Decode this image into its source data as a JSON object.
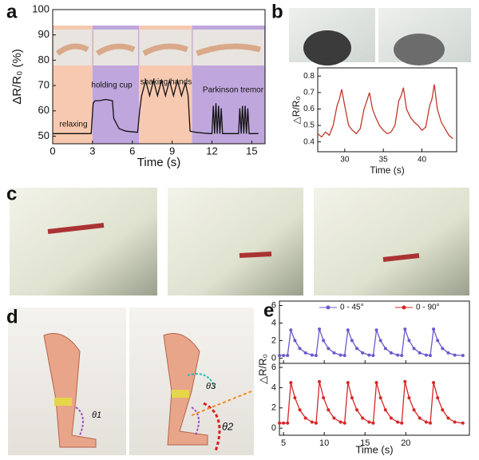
{
  "figure": {
    "panel_labels": [
      "a",
      "b",
      "c",
      "d",
      "e"
    ],
    "theta_labels": [
      "θ1",
      "θ2",
      "θ3"
    ]
  },
  "chart_data": [
    {
      "type": "line",
      "xlabel": "Time (s)",
      "ylabel": "ΔR/R₀ (%)",
      "xlim": [
        0,
        16
      ],
      "xticks": [
        0,
        3,
        6,
        9,
        12,
        15
      ],
      "ylim": [
        47,
        100
      ],
      "yticks": [
        50,
        60,
        70,
        80,
        90,
        100
      ],
      "bands": [
        [
          0,
          3
        ],
        [
          3,
          6.5
        ],
        [
          6.5,
          10.5
        ],
        [
          10.5,
          16
        ]
      ],
      "band_colors": [
        "#f6c9b0",
        "#bfa6dc",
        "#f6c9b0",
        "#bfa6dc"
      ],
      "annotations": [
        "relaxing",
        "holding cup",
        "shaking hands",
        "Parkinson tremor"
      ],
      "x": [
        0,
        2.9,
        3.05,
        3.2,
        3.5,
        4,
        4.5,
        4.6,
        5,
        5.5,
        6.4,
        6.55,
        6.7,
        7,
        7.3,
        7.6,
        7.9,
        8.2,
        8.5,
        8.8,
        9.1,
        9.4,
        9.7,
        10,
        10.2,
        10.35,
        10.8,
        11.8,
        12,
        12.1,
        12.2,
        12.3,
        12.4,
        12.5,
        12.6,
        12.7,
        12.8,
        13.9,
        14,
        14.1,
        14.2,
        14.3,
        14.4,
        14.5,
        14.6,
        14.7,
        14.8,
        15.5
      ],
      "series": [
        {
          "color": "#111111",
          "values": [
            51,
            51,
            63,
            64,
            64,
            64.5,
            64,
            57,
            53,
            52,
            51.5,
            60,
            66,
            72,
            66,
            72,
            66,
            72,
            66,
            72,
            66,
            72,
            66,
            71,
            66,
            52,
            51.5,
            51,
            51,
            62,
            51,
            63,
            51,
            62,
            51,
            61,
            51,
            51,
            51,
            61,
            51,
            62,
            51,
            62,
            51,
            61,
            51,
            51
          ]
        }
      ]
    },
    {
      "type": "line",
      "xlabel": "Time (s)",
      "ylabel": "△R/R₀",
      "xlim": [
        26.5,
        44.5
      ],
      "xticks": [
        30,
        35,
        40
      ],
      "ylim": [
        0.34,
        0.85
      ],
      "yticks": [
        0.4,
        0.5,
        0.6,
        0.7,
        0.8
      ],
      "x": [
        26.5,
        27,
        27.5,
        28,
        28.5,
        29,
        29.3,
        29.6,
        30,
        30.5,
        31,
        31.5,
        32,
        32.5,
        32.8,
        33.2,
        33.6,
        34,
        34.5,
        35,
        35.5,
        36,
        36.5,
        37,
        37.3,
        37.6,
        38,
        38.5,
        39,
        39.5,
        40,
        40.5,
        41,
        41.3,
        41.6,
        42,
        42.5,
        43,
        43.5,
        44
      ],
      "series": [
        {
          "color": "#c0392b",
          "values": [
            0.45,
            0.43,
            0.46,
            0.44,
            0.5,
            0.62,
            0.66,
            0.72,
            0.62,
            0.5,
            0.47,
            0.45,
            0.48,
            0.6,
            0.64,
            0.7,
            0.6,
            0.55,
            0.5,
            0.47,
            0.45,
            0.46,
            0.5,
            0.65,
            0.68,
            0.73,
            0.6,
            0.55,
            0.52,
            0.5,
            0.47,
            0.49,
            0.62,
            0.66,
            0.75,
            0.6,
            0.52,
            0.48,
            0.44,
            0.42
          ]
        }
      ]
    },
    {
      "type": "line",
      "xlabel": "Time (s)",
      "ylabel": "△R/R₀",
      "xlim": [
        4.5,
        27.8
      ],
      "xticks": [
        5,
        10,
        15,
        20
      ],
      "markers": true,
      "x": [
        4.5,
        5,
        5.5,
        5.9,
        6.4,
        7,
        7.7,
        8.5,
        9,
        9.4,
        9.9,
        10.5,
        11.2,
        12,
        12.5,
        12.9,
        13.4,
        14,
        14.7,
        15.5,
        16,
        16.4,
        16.9,
        17.5,
        18.2,
        19,
        19.5,
        19.9,
        20.4,
        21,
        21.7,
        22.5,
        23,
        23.4,
        23.9,
        24.5,
        25.2,
        26,
        27
      ],
      "panels": [
        {
          "ylim": [
            -0.6,
            6.5
          ],
          "yticks": [
            0,
            2,
            4,
            6
          ],
          "series": [
            {
              "name": "0 - 45°",
              "color": "#6a5acd",
              "values": [
                0.3,
                0.3,
                0.3,
                3.2,
                2.0,
                1.1,
                0.6,
                0.35,
                0.3,
                3.3,
                2.0,
                1.1,
                0.6,
                0.35,
                0.3,
                3.2,
                2.0,
                1.1,
                0.6,
                0.35,
                0.3,
                3.2,
                2.0,
                1.1,
                0.6,
                0.35,
                0.3,
                3.3,
                2.0,
                1.1,
                0.6,
                0.35,
                0.3,
                3.3,
                2.0,
                1.1,
                0.6,
                0.35,
                0.3
              ]
            }
          ]
        },
        {
          "ylim": [
            -0.7,
            6.4
          ],
          "yticks": [
            0,
            2,
            4,
            6
          ],
          "series": [
            {
              "name": "0 - 90°",
              "color": "#d62728",
              "values": [
                0.5,
                0.5,
                0.5,
                4.5,
                3.0,
                1.8,
                1.0,
                0.6,
                0.5,
                4.6,
                3.0,
                1.8,
                1.0,
                0.6,
                0.5,
                4.5,
                3.0,
                1.8,
                1.0,
                0.6,
                0.5,
                4.5,
                3.0,
                1.8,
                1.0,
                0.6,
                0.5,
                4.6,
                3.0,
                1.8,
                1.0,
                0.6,
                0.5,
                4.5,
                3.0,
                1.8,
                1.0,
                0.6,
                0.5
              ]
            }
          ]
        }
      ]
    }
  ]
}
